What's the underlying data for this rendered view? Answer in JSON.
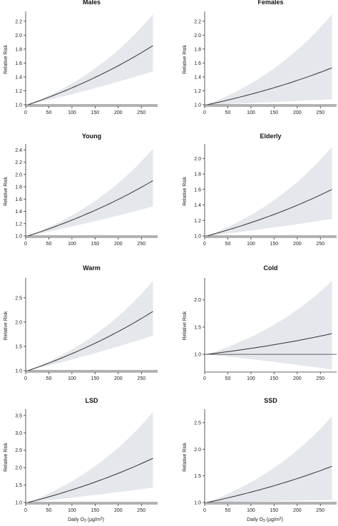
{
  "figure": {
    "panel_titles": [
      "Males",
      "Females",
      "Young",
      "Elderly",
      "Warm",
      "Cold",
      "LSD",
      "SSD"
    ],
    "ylabel": "Relative Risk",
    "xlabel_prefix": "Daily O",
    "xlabel_sub": "3",
    "xlabel_suffix": " (µg/m",
    "xlabel_sup": "3",
    "xlabel_end": ")"
  },
  "chart_data": [
    {
      "type": "line",
      "title": "Males",
      "x": [
        5,
        275
      ],
      "xlim": [
        0,
        285
      ],
      "xticks": [
        0,
        50,
        100,
        150,
        200,
        250
      ],
      "ylim": [
        1.0,
        2.3
      ],
      "yticks": [
        1.0,
        1.2,
        1.4,
        1.6,
        1.8,
        2.0,
        2.2
      ],
      "series": [
        {
          "values": [
            1.0,
            1.85
          ]
        }
      ],
      "ci_lower": [
        1.0,
        1.48
      ],
      "ci_upper": [
        1.0,
        2.3
      ],
      "xlabel": "",
      "ylabel": "Relative Risk"
    },
    {
      "type": "line",
      "title": "Females",
      "x": [
        5,
        275
      ],
      "xlim": [
        0,
        285
      ],
      "xticks": [
        0,
        50,
        100,
        150,
        200,
        250
      ],
      "ylim": [
        1.0,
        2.3
      ],
      "yticks": [
        1.0,
        1.2,
        1.4,
        1.6,
        1.8,
        2.0,
        2.2
      ],
      "series": [
        {
          "values": [
            1.0,
            1.53
          ]
        }
      ],
      "ci_lower": [
        1.0,
        1.08
      ],
      "ci_upper": [
        1.0,
        2.3
      ],
      "xlabel": "",
      "ylabel": "Relative Risk"
    },
    {
      "type": "line",
      "title": "Young",
      "x": [
        5,
        275
      ],
      "xlim": [
        0,
        285
      ],
      "xticks": [
        0,
        50,
        100,
        150,
        200,
        250
      ],
      "ylim": [
        1.0,
        2.45
      ],
      "yticks": [
        1.0,
        1.2,
        1.4,
        1.6,
        1.8,
        2.0,
        2.2,
        2.4
      ],
      "series": [
        {
          "values": [
            1.0,
            1.9
          ]
        }
      ],
      "ci_lower": [
        1.0,
        1.48
      ],
      "ci_upper": [
        1.0,
        2.42
      ],
      "xlabel": "",
      "ylabel": "Relative Risk"
    },
    {
      "type": "line",
      "title": "Elderly",
      "x": [
        5,
        275
      ],
      "xlim": [
        0,
        285
      ],
      "xticks": [
        0,
        50,
        100,
        150,
        200,
        250
      ],
      "ylim": [
        1.0,
        2.15
      ],
      "yticks": [
        1.0,
        1.2,
        1.4,
        1.6,
        1.8,
        2.0
      ],
      "series": [
        {
          "values": [
            1.0,
            1.6
          ]
        }
      ],
      "ci_lower": [
        1.0,
        1.22
      ],
      "ci_upper": [
        1.0,
        2.15
      ],
      "xlabel": "",
      "ylabel": "Relative Risk"
    },
    {
      "type": "line",
      "title": "Warm",
      "x": [
        5,
        275
      ],
      "xlim": [
        0,
        285
      ],
      "xticks": [
        0,
        50,
        100,
        150,
        200,
        250
      ],
      "ylim": [
        1.0,
        2.85
      ],
      "yticks": [
        1.0,
        1.5,
        2.0,
        2.5
      ],
      "series": [
        {
          "values": [
            1.0,
            2.22
          ]
        }
      ],
      "ci_lower": [
        1.0,
        1.72
      ],
      "ci_upper": [
        1.0,
        2.85
      ],
      "xlabel": "",
      "ylabel": "Relative Risk"
    },
    {
      "type": "line",
      "title": "Cold",
      "x": [
        5,
        275
      ],
      "xlim": [
        0,
        285
      ],
      "xticks": [
        0,
        50,
        100,
        150,
        200,
        250
      ],
      "ylim": [
        0.7,
        2.35
      ],
      "yticks": [
        1.0,
        1.5,
        2.0
      ],
      "series": [
        {
          "values": [
            1.0,
            1.38
          ]
        }
      ],
      "ci_lower": [
        1.0,
        0.72
      ],
      "ci_upper": [
        1.0,
        2.35
      ],
      "xlabel": "",
      "ylabel": "Relative Risk"
    },
    {
      "type": "line",
      "title": "LSD",
      "x": [
        5,
        275
      ],
      "xlim": [
        0,
        285
      ],
      "xticks": [
        0,
        50,
        100,
        150,
        200,
        250
      ],
      "ylim": [
        1.0,
        3.6
      ],
      "yticks": [
        1.0,
        1.5,
        2.0,
        2.5,
        3.0,
        3.5
      ],
      "series": [
        {
          "values": [
            1.0,
            2.27
          ]
        }
      ],
      "ci_lower": [
        1.0,
        1.43
      ],
      "ci_upper": [
        1.0,
        3.6
      ],
      "xlabel": "Daily O3 (µg/m3)",
      "ylabel": "Relative Risk"
    },
    {
      "type": "line",
      "title": "SSD",
      "x": [
        5,
        275
      ],
      "xlim": [
        0,
        285
      ],
      "xticks": [
        0,
        50,
        100,
        150,
        200,
        250
      ],
      "ylim": [
        1.0,
        2.7
      ],
      "yticks": [
        1.0,
        1.5,
        2.0,
        2.5
      ],
      "series": [
        {
          "values": [
            1.0,
            1.68
          ]
        }
      ],
      "ci_lower": [
        1.0,
        1.05
      ],
      "ci_upper": [
        1.0,
        2.62
      ],
      "xlabel": "Daily O3 (µg/m3)",
      "ylabel": "Relative Risk"
    }
  ]
}
